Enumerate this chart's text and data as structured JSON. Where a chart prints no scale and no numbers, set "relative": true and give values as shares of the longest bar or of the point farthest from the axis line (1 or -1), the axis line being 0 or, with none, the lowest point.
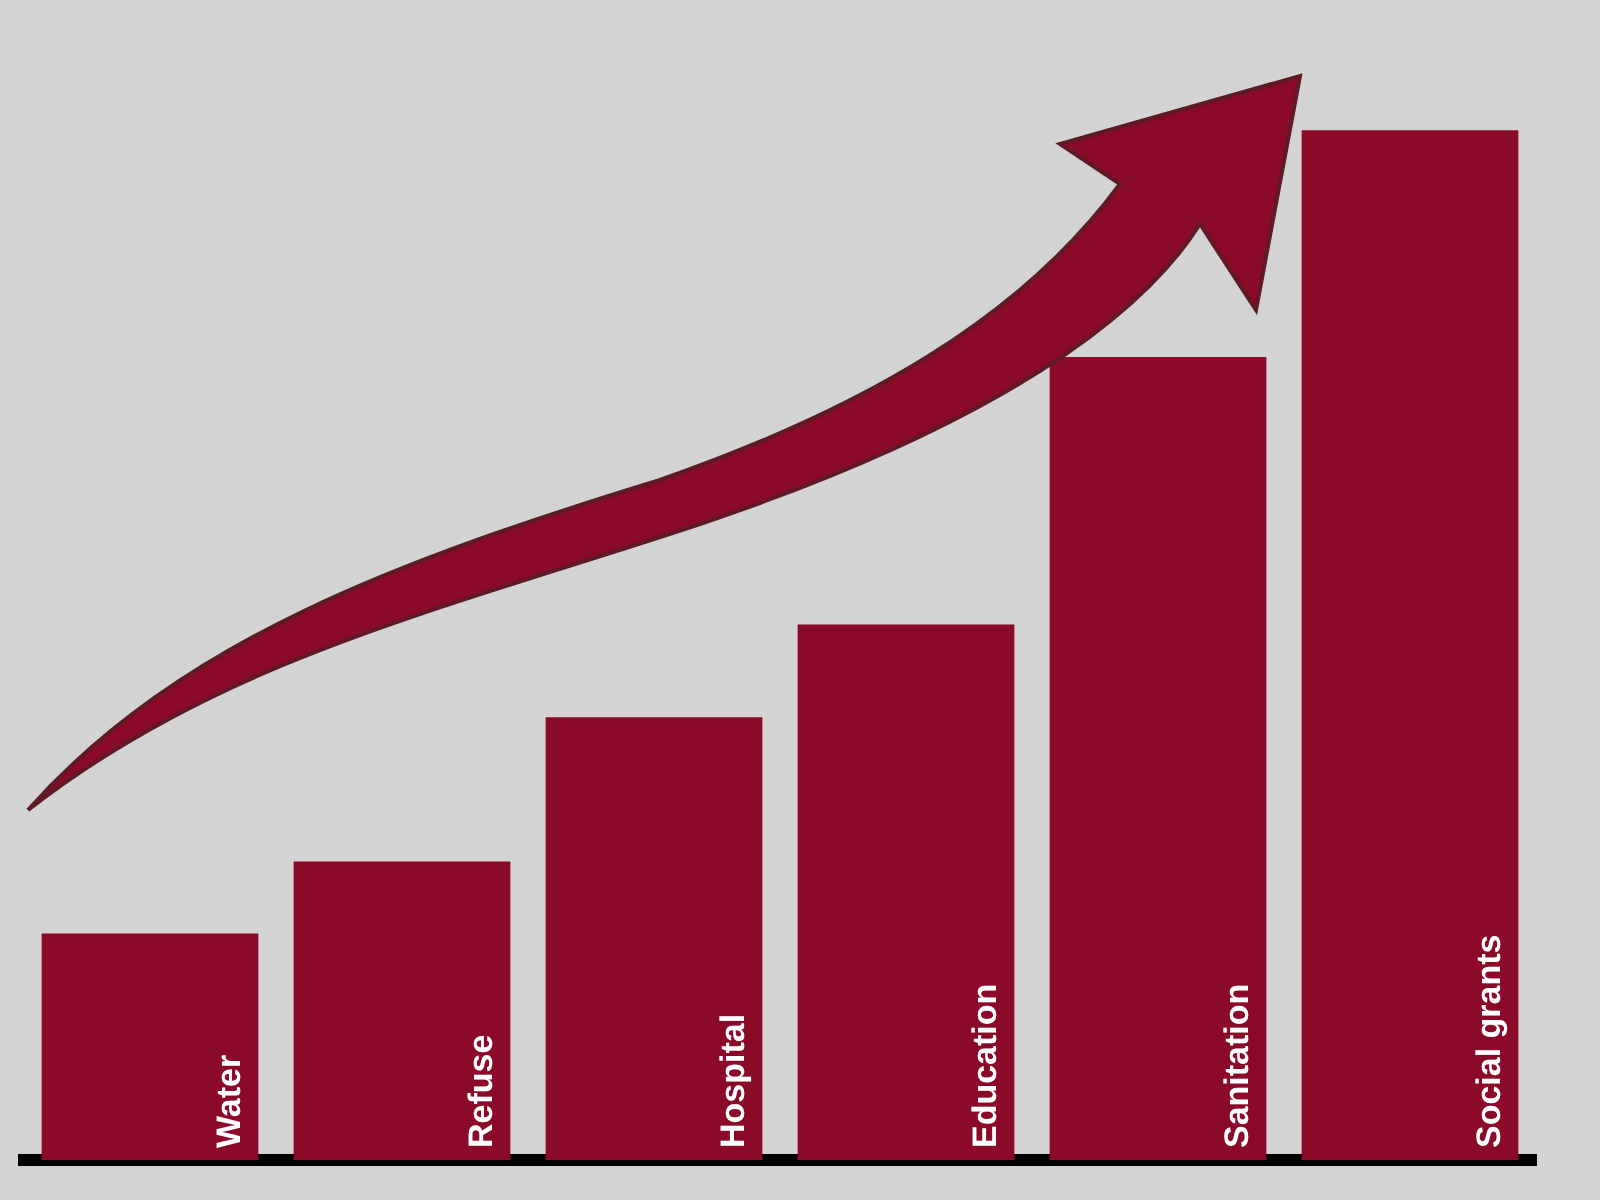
{
  "chart_data": {
    "type": "bar",
    "relative": true,
    "categories": [
      "Water",
      "Refuse",
      "Hospital",
      "Education",
      "Sanitation",
      "Social grants"
    ],
    "values": [
      0.22,
      0.29,
      0.43,
      0.52,
      0.78,
      1
    ],
    "color": "#8b0a2a",
    "grid": false,
    "legend": false
  }
}
